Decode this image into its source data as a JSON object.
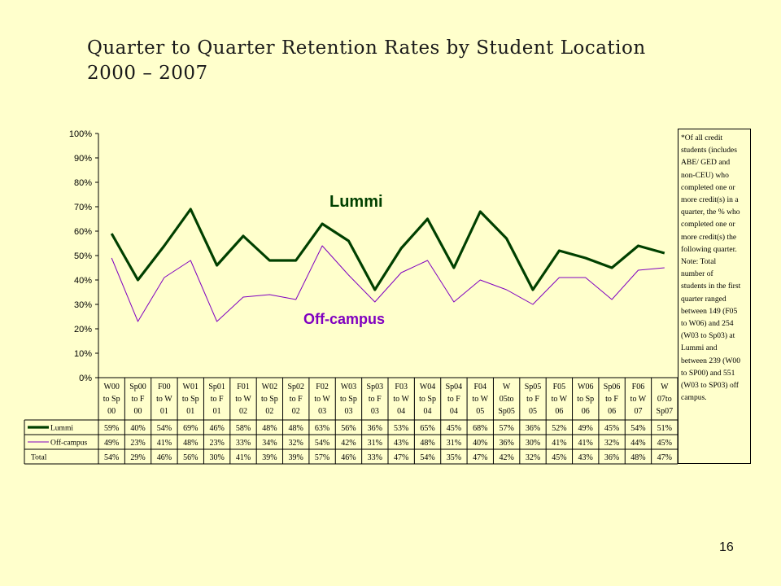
{
  "slide": {
    "title_line1": "Quarter to Quarter Retention Rates by Student Location",
    "title_line2": "2000 – 2007",
    "page_number": "16"
  },
  "note": {
    "paragraph1": "*Of all credit\nstudents (includes\nABE/ GED and\nnon-CEU) who\ncompleted one or\nmore credit(s) in a\nquarter, the % who\ncompleted one or\nmore credit(s) the\nfollowing quarter.",
    "paragraph2": "Note: Total\nnumber of\nstudents in the first\nquarter ranged\nbetween 149 (F05\nto W06) and 254\n(W03 to Sp03) at\nLummi and\nbetween 239 (W00\nto SP00) and 551\n(W03 to SP03) off\ncampus."
  },
  "chart_data": {
    "type": "line",
    "categories": [
      [
        "W00",
        "to Sp",
        "00"
      ],
      [
        "Sp00",
        "to F",
        "00"
      ],
      [
        "F00",
        "to W",
        "01"
      ],
      [
        "W01",
        "to Sp",
        "01"
      ],
      [
        "Sp01",
        "to F",
        "01"
      ],
      [
        "F01",
        "to W",
        "02"
      ],
      [
        "W02",
        "to Sp",
        "02"
      ],
      [
        "Sp02",
        "to F",
        "02"
      ],
      [
        "F02",
        "to W",
        "03"
      ],
      [
        "W03",
        "to Sp",
        "03"
      ],
      [
        "Sp03",
        "to F",
        "03"
      ],
      [
        "F03",
        "to W",
        "04"
      ],
      [
        "W04",
        "to Sp",
        "04"
      ],
      [
        "Sp04",
        "to F",
        "04"
      ],
      [
        "F04",
        "to W",
        "05"
      ],
      [
        "W",
        "05to",
        "Sp05"
      ],
      [
        "Sp05",
        "to F",
        "05"
      ],
      [
        "F05",
        "to W",
        "06"
      ],
      [
        "W06",
        "to Sp",
        "06"
      ],
      [
        "Sp06",
        "to F",
        "06"
      ],
      [
        "F06",
        "to W",
        "07"
      ],
      [
        "W",
        "07to",
        "Sp07"
      ]
    ],
    "series": [
      {
        "name": "Lummi",
        "color": "#004000",
        "width": 3.2,
        "values": [
          59,
          40,
          54,
          69,
          46,
          58,
          48,
          48,
          63,
          56,
          36,
          53,
          65,
          45,
          68,
          57,
          36,
          52,
          49,
          45,
          54,
          51
        ],
        "labels": [
          "59%",
          "40%",
          "54%",
          "69%",
          "46%",
          "58%",
          "48%",
          "48%",
          "63%",
          "56%",
          "36%",
          "53%",
          "65%",
          "45%",
          "68%",
          "57%",
          "36%",
          "52%",
          "49%",
          "45%",
          "54%",
          "51%"
        ]
      },
      {
        "name": "Off-campus",
        "color": "#8000C0",
        "width": 1,
        "values": [
          49,
          23,
          41,
          48,
          23,
          33,
          34,
          32,
          54,
          42,
          31,
          43,
          48,
          31,
          40,
          36,
          30,
          41,
          41,
          32,
          44,
          45
        ],
        "labels": [
          "49%",
          "23%",
          "41%",
          "48%",
          "23%",
          "33%",
          "34%",
          "32%",
          "54%",
          "42%",
          "31%",
          "43%",
          "48%",
          "31%",
          "40%",
          "36%",
          "30%",
          "41%",
          "41%",
          "32%",
          "44%",
          "45%"
        ]
      },
      {
        "name": "Total",
        "color": null,
        "width": 0,
        "values": [
          54,
          29,
          46,
          56,
          30,
          41,
          39,
          39,
          57,
          46,
          33,
          47,
          54,
          35,
          47,
          42,
          32,
          45,
          43,
          36,
          48,
          47
        ],
        "labels": [
          "54%",
          "29%",
          "46%",
          "56%",
          "30%",
          "41%",
          "39%",
          "39%",
          "57%",
          "46%",
          "33%",
          "47%",
          "54%",
          "35%",
          "47%",
          "42%",
          "32%",
          "45%",
          "43%",
          "36%",
          "48%",
          "47%"
        ]
      }
    ],
    "ylim": [
      0,
      100
    ],
    "yticks": [
      "0%",
      "10%",
      "20%",
      "30%",
      "40%",
      "50%",
      "60%",
      "70%",
      "80%",
      "90%",
      "100%"
    ],
    "annotations": [
      {
        "text": "Lummi",
        "color": "#004000"
      },
      {
        "text": "Off-campus",
        "color": "#8000C0"
      }
    ],
    "grid": false,
    "legend": "data-table-below"
  }
}
